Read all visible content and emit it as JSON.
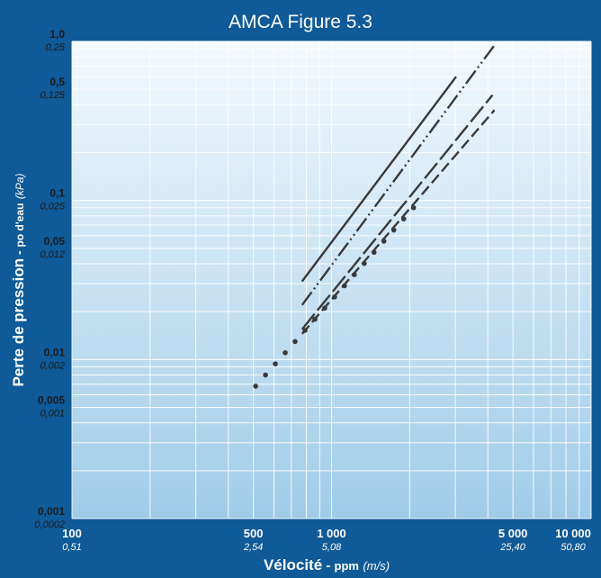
{
  "colors": {
    "frame": "#0f5a98",
    "plot_top": "#f4f9fd",
    "plot_bottom": "#9fcce9",
    "grid": "#ffffff",
    "series": "#3a3a3a",
    "text": "#ffffff",
    "tick_text": "#1a1a1a"
  },
  "chart_data": {
    "type": "line",
    "title": "AMCA Figure 5.3",
    "xscale": "log",
    "yscale": "log",
    "xlim": [
      100,
      10000
    ],
    "ylim": [
      0.001,
      1.0
    ],
    "grid": true,
    "legend": "none",
    "xlabel": {
      "main": "Vélocité",
      "sep": " - ",
      "unit": "ppm",
      "alt": "(m/s)"
    },
    "ylabel": {
      "main": "Perte de pression",
      "sep": " - ",
      "unit": "po d'eau",
      "alt": "(kPa)"
    },
    "x_ticks": [
      {
        "value": 100,
        "label": "100",
        "sub": "0,51"
      },
      {
        "value": 500,
        "label": "500",
        "sub": "2,54"
      },
      {
        "value": 1000,
        "label": "1 000",
        "sub": "5,08"
      },
      {
        "value": 5000,
        "label": "5 000",
        "sub": "25,40"
      },
      {
        "value": 10000,
        "label": "10 000",
        "sub": "50,80"
      }
    ],
    "y_ticks": [
      {
        "value": 1.0,
        "label": "1,0",
        "sub": "0,25"
      },
      {
        "value": 0.5,
        "label": "0,5",
        "sub": "0,125"
      },
      {
        "value": 0.1,
        "label": "0,1",
        "sub": "0,025"
      },
      {
        "value": 0.05,
        "label": "0,05",
        "sub": "0,012"
      },
      {
        "value": 0.01,
        "label": "0,01",
        "sub": "0,002"
      },
      {
        "value": 0.005,
        "label": "0,005",
        "sub": "0,001"
      },
      {
        "value": 0.001,
        "label": "0,001",
        "sub": "0,0002"
      }
    ],
    "series": [
      {
        "style": "solid",
        "points": [
          [
            770,
            0.031
          ],
          [
            3020,
            0.6
          ]
        ]
      },
      {
        "style": "dash-dot-dot",
        "points": [
          [
            770,
            0.022
          ],
          [
            4290,
            0.97
          ]
        ]
      },
      {
        "style": "long-dash",
        "points": [
          [
            770,
            0.0155
          ],
          [
            4170,
            0.46
          ]
        ]
      },
      {
        "style": "short-dash",
        "points": [
          [
            770,
            0.0145
          ],
          [
            4240,
            0.37
          ]
        ]
      },
      {
        "style": "dotted",
        "points": [
          [
            510,
            0.0068
          ],
          [
            2070,
            0.09
          ]
        ]
      }
    ]
  }
}
